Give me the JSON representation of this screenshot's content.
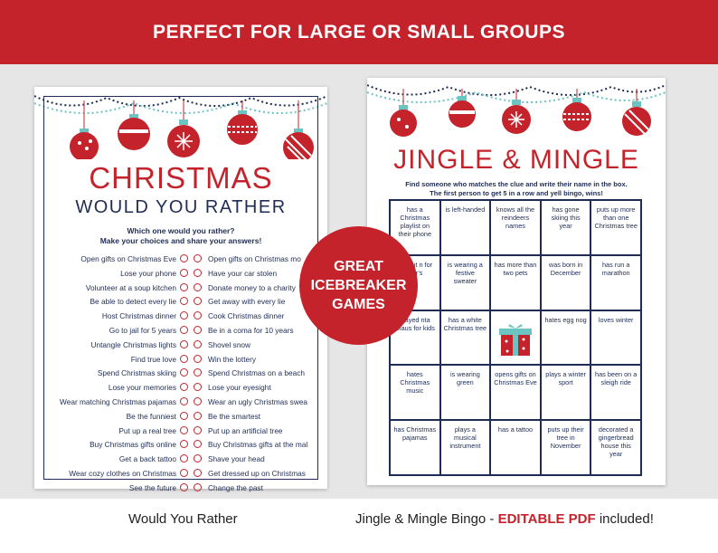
{
  "banner": {
    "text": "PERFECT FOR LARGE OR SMALL GROUPS"
  },
  "colors": {
    "red": "#c4232b",
    "navy": "#1f2d55",
    "teal": "#6cc4c2",
    "background": "#e6e6e6"
  },
  "left_sheet": {
    "title": "CHRISTMAS",
    "subtitle": "WOULD YOU RATHER",
    "instruction_1": "Which one would you rather?",
    "instruction_2": "Make your choices and share your answers!",
    "rows": [
      {
        "a": "Open gifts on Christmas Eve",
        "b": "Open gifts on Christmas mo"
      },
      {
        "a": "Lose your phone",
        "b": "Have your car stolen"
      },
      {
        "a": "Volunteer at a soup kitchen",
        "b": "Donate money to a charity"
      },
      {
        "a": "Be able to detect every lie",
        "b": "Get away with every lie"
      },
      {
        "a": "Host Christmas dinner",
        "b": "Cook Christmas dinner"
      },
      {
        "a": "Go to jail for 5 years",
        "b": "Be in a coma for 10 years"
      },
      {
        "a": "Untangle Christmas lights",
        "b": "Shovel snow"
      },
      {
        "a": "Find true love",
        "b": "Win the lottery"
      },
      {
        "a": "Spend Christmas skiing",
        "b": "Spend Christmas on a beach"
      },
      {
        "a": "Lose your memories",
        "b": "Lose your eyesight"
      },
      {
        "a": "Wear matching Christmas pajamas",
        "b": "Wear an ugly Christmas sweater"
      },
      {
        "a": "Be the funniest",
        "b": "Be the smartest"
      },
      {
        "a": "Put up a real tree",
        "b": "Put up an artificial tree"
      },
      {
        "a": "Buy Christmas gifts online",
        "b": "Buy Christmas gifts at the mall"
      },
      {
        "a": "Get a back tattoo",
        "b": "Shave your head"
      },
      {
        "a": "Wear cozy clothes on Christmas",
        "b": "Get dressed up on Christmas"
      },
      {
        "a": "See the future",
        "b": "Change the past"
      }
    ]
  },
  "right_sheet": {
    "title": "JINGLE & MINGLE",
    "instruction_1": "Find someone who matches the clue and write their name in the box.",
    "instruction_2": "The first person to get 5 in a row and yell bingo, wins!",
    "cells": [
      "has a Christmas playlist on their phone",
      "is left-handed",
      "knows all the reindeers names",
      "has gone skiing this year",
      "puts up more than one Christmas tree",
      "ing out n for lear's",
      "is wearing a festive sweater",
      "has more than two pets",
      "was born in December",
      "has run a marathon",
      "played nta Claus for kids",
      "has a white Christmas tree",
      "",
      "hates egg nog",
      "loves winter",
      "hates Christmas music",
      "is wearing green",
      "opens gifts on Christmas Eve",
      "plays a winter sport",
      "has been on a sleigh ride",
      "has Christmas pajamas",
      "plays a musical instrument",
      "has a tattoo",
      "puts up their tree in November",
      "decorated a gingerbread house this year"
    ]
  },
  "badge": {
    "line_1": "GREAT",
    "line_2": "ICEBREAKER",
    "line_3": "GAMES"
  },
  "captions": {
    "left": "Would You Rather",
    "right_prefix": "Jingle & Mingle Bingo - ",
    "right_accent": "EDITABLE PDF",
    "right_suffix": " included!"
  }
}
